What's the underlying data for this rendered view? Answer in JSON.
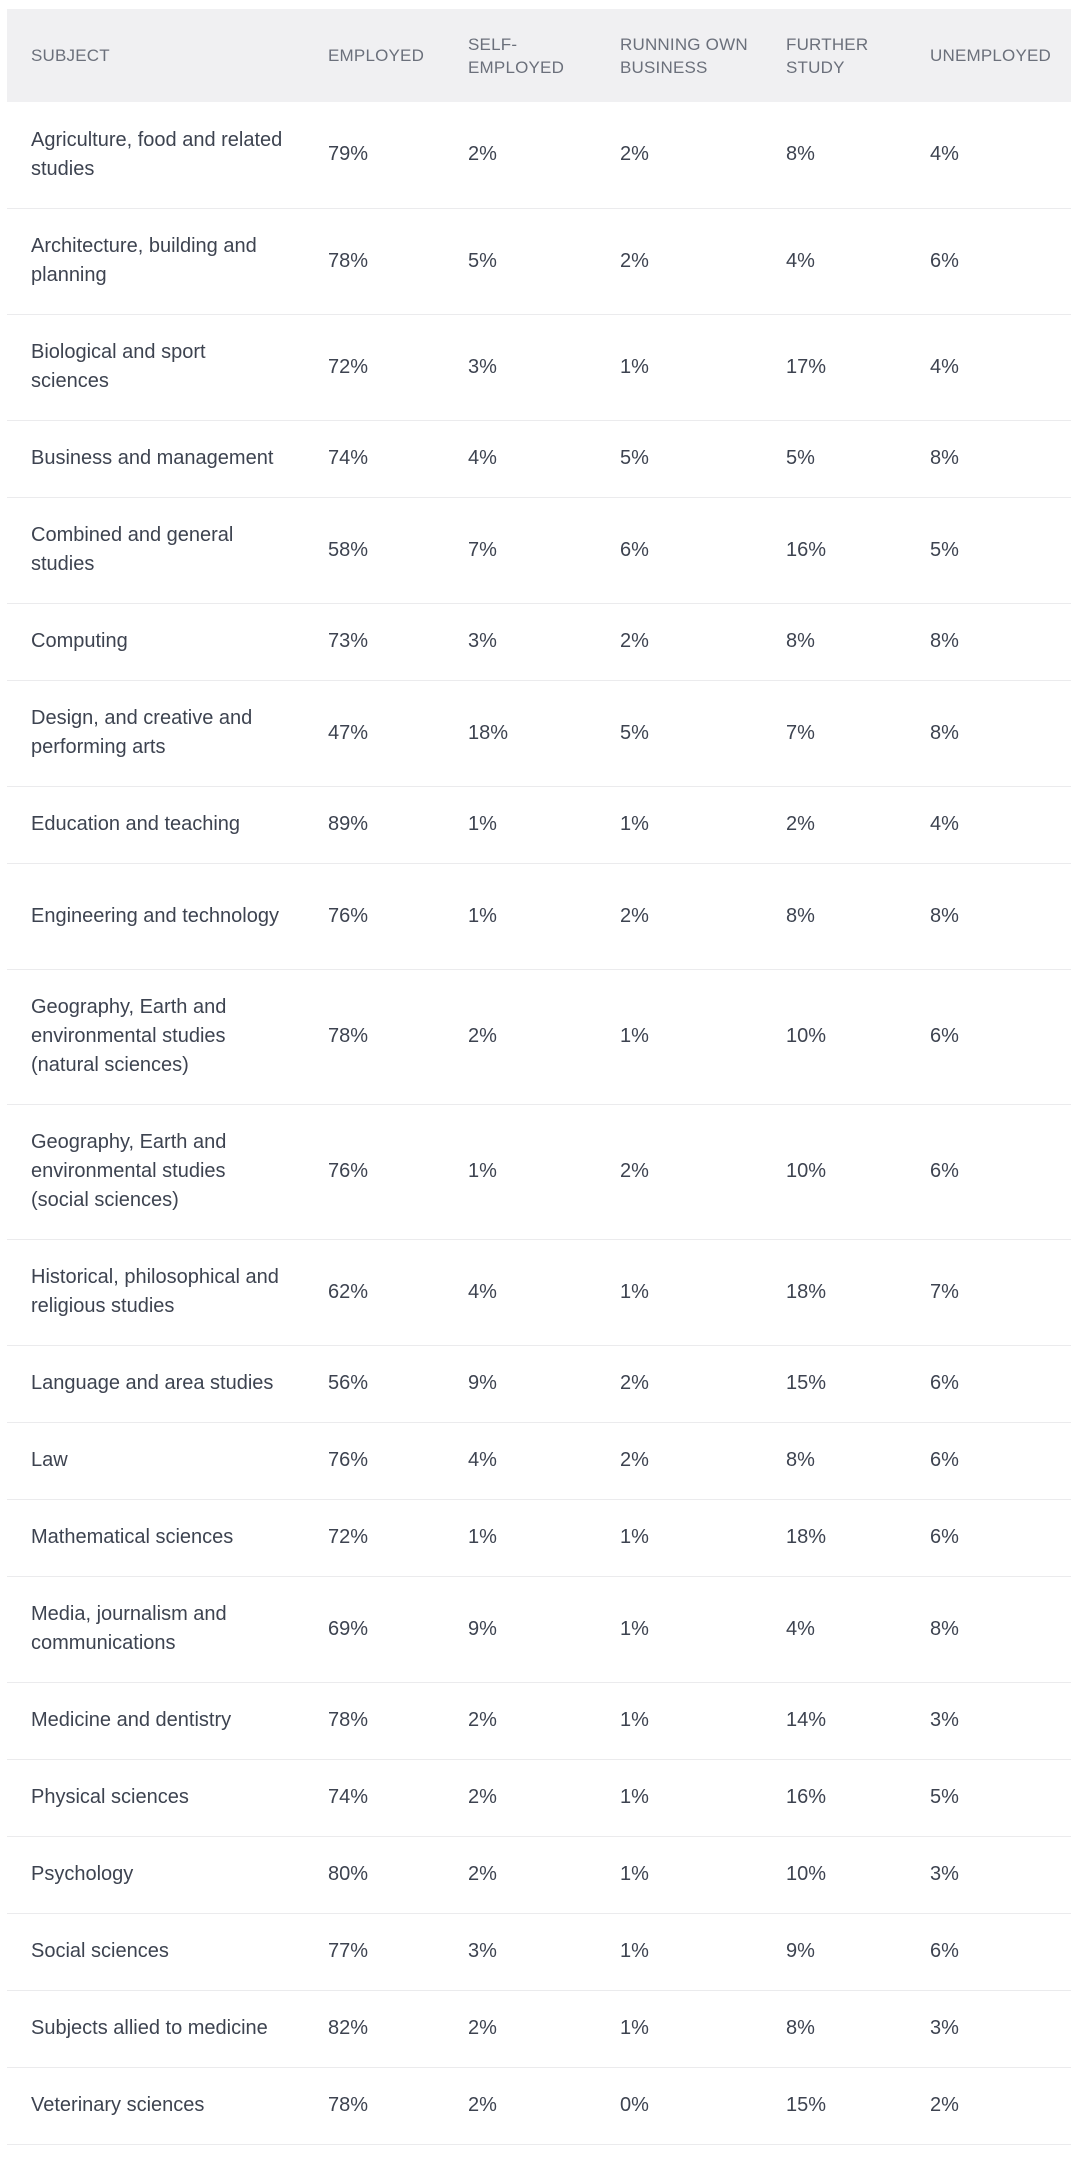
{
  "table": {
    "headers": {
      "subject": "SUBJECT",
      "employed": "EMPLOYED",
      "self_employed": "SELF-EMPLOYED",
      "running_own_business": "RUNNING OWN BUSINESS",
      "further_study": "FURTHER STUDY",
      "unemployed": "UNEMPLOYED"
    },
    "rows": [
      {
        "subject": "Agriculture, food and related studies",
        "employed": "79%",
        "self_employed": "2%",
        "running_own_business": "2%",
        "further_study": "8%",
        "unemployed": "4%"
      },
      {
        "subject": "Architecture, building and planning",
        "employed": "78%",
        "self_employed": "5%",
        "running_own_business": "2%",
        "further_study": "4%",
        "unemployed": "6%"
      },
      {
        "subject": "Biological and sport sciences",
        "employed": "72%",
        "self_employed": "3%",
        "running_own_business": "1%",
        "further_study": "17%",
        "unemployed": "4%"
      },
      {
        "subject": "Business and management",
        "employed": "74%",
        "self_employed": "4%",
        "running_own_business": "5%",
        "further_study": "5%",
        "unemployed": "8%"
      },
      {
        "subject": "Combined and general studies",
        "employed": "58%",
        "self_employed": "7%",
        "running_own_business": "6%",
        "further_study": "16%",
        "unemployed": "5%"
      },
      {
        "subject": "Computing",
        "employed": "73%",
        "self_employed": "3%",
        "running_own_business": "2%",
        "further_study": "8%",
        "unemployed": "8%"
      },
      {
        "subject": "Design, and creative and performing arts",
        "employed": "47%",
        "self_employed": "18%",
        "running_own_business": "5%",
        "further_study": "7%",
        "unemployed": "8%"
      },
      {
        "subject": "Education and teaching",
        "employed": "89%",
        "self_employed": "1%",
        "running_own_business": "1%",
        "further_study": "2%",
        "unemployed": "4%"
      },
      {
        "subject": "Engineering and technology",
        "employed": "76%",
        "self_employed": "1%",
        "running_own_business": "2%",
        "further_study": "8%",
        "unemployed": "8%"
      },
      {
        "subject": "Geography, Earth and environmental studies (natural sciences)",
        "employed": "78%",
        "self_employed": "2%",
        "running_own_business": "1%",
        "further_study": "10%",
        "unemployed": "6%"
      },
      {
        "subject": "Geography, Earth and environmental studies (social sciences)",
        "employed": "76%",
        "self_employed": "1%",
        "running_own_business": "2%",
        "further_study": "10%",
        "unemployed": "6%"
      },
      {
        "subject": "Historical, philosophical and religious studies",
        "employed": "62%",
        "self_employed": "4%",
        "running_own_business": "1%",
        "further_study": "18%",
        "unemployed": "7%"
      },
      {
        "subject": "Language and area studies",
        "employed": "56%",
        "self_employed": "9%",
        "running_own_business": "2%",
        "further_study": "15%",
        "unemployed": "6%"
      },
      {
        "subject": "Law",
        "employed": "76%",
        "self_employed": "4%",
        "running_own_business": "2%",
        "further_study": "8%",
        "unemployed": "6%"
      },
      {
        "subject": "Mathematical sciences",
        "employed": "72%",
        "self_employed": "1%",
        "running_own_business": "1%",
        "further_study": "18%",
        "unemployed": "6%"
      },
      {
        "subject": "Media, journalism and communications",
        "employed": "69%",
        "self_employed": "9%",
        "running_own_business": "1%",
        "further_study": "4%",
        "unemployed": "8%"
      },
      {
        "subject": "Medicine and dentistry",
        "employed": "78%",
        "self_employed": "2%",
        "running_own_business": "1%",
        "further_study": "14%",
        "unemployed": "3%"
      },
      {
        "subject": "Physical sciences",
        "employed": "74%",
        "self_employed": "2%",
        "running_own_business": "1%",
        "further_study": "16%",
        "unemployed": "5%"
      },
      {
        "subject": "Psychology",
        "employed": "80%",
        "self_employed": "2%",
        "running_own_business": "1%",
        "further_study": "10%",
        "unemployed": "3%"
      },
      {
        "subject": "Social sciences",
        "employed": "77%",
        "self_employed": "3%",
        "running_own_business": "1%",
        "further_study": "9%",
        "unemployed": "6%"
      },
      {
        "subject": "Subjects allied to medicine",
        "employed": "82%",
        "self_employed": "2%",
        "running_own_business": "1%",
        "further_study": "8%",
        "unemployed": "3%"
      },
      {
        "subject": "Veterinary sciences",
        "employed": "78%",
        "self_employed": "2%",
        "running_own_business": "0%",
        "further_study": "15%",
        "unemployed": "2%"
      }
    ]
  }
}
